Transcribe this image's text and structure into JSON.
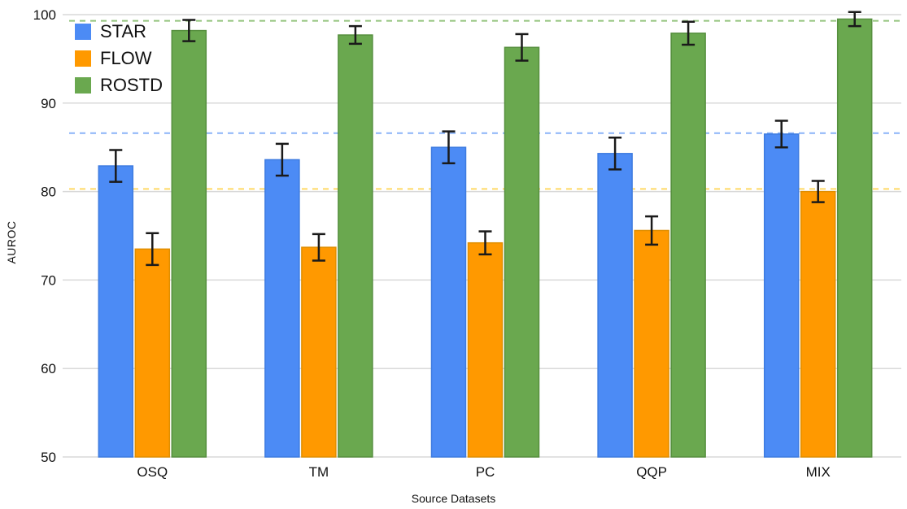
{
  "chart_data": {
    "type": "bar",
    "title": "",
    "categories": [
      "OSQ",
      "TM",
      "PC",
      "QQP",
      "MIX"
    ],
    "series": [
      {
        "name": "STAR",
        "color": "#4c8bf5",
        "edge": "#3d7be0",
        "values": [
          82.9,
          83.6,
          85.0,
          84.3,
          86.5
        ],
        "errors": [
          1.8,
          1.8,
          1.8,
          1.8,
          1.5
        ]
      },
      {
        "name": "FLOW",
        "color": "#ff9900",
        "edge": "#e08e00",
        "values": [
          73.5,
          73.7,
          74.2,
          75.6,
          80.0
        ],
        "errors": [
          1.8,
          1.5,
          1.3,
          1.6,
          1.2
        ]
      },
      {
        "name": "ROSTD",
        "color": "#6aa84f",
        "edge": "#568f3e",
        "values": [
          98.2,
          97.7,
          96.3,
          97.9,
          99.5
        ],
        "errors": [
          1.2,
          1.0,
          1.5,
          1.3,
          0.8
        ]
      }
    ],
    "xlabel": "Source Datasets",
    "ylabel": "AUROC",
    "ylim": [
      50,
      100
    ],
    "yticks": [
      50,
      60,
      70,
      80,
      90,
      100
    ],
    "reference_lines": [
      {
        "value": 86.6,
        "color": "#8ab4f8"
      },
      {
        "value": 80.3,
        "color": "#ffd966"
      },
      {
        "value": 99.3,
        "color": "#93c47d"
      }
    ],
    "grid": true,
    "legend_position": "top-left",
    "error_bar_color": "#1a1a1a",
    "gridline_color": "#d9d9d9",
    "tick_color": "#111111"
  }
}
